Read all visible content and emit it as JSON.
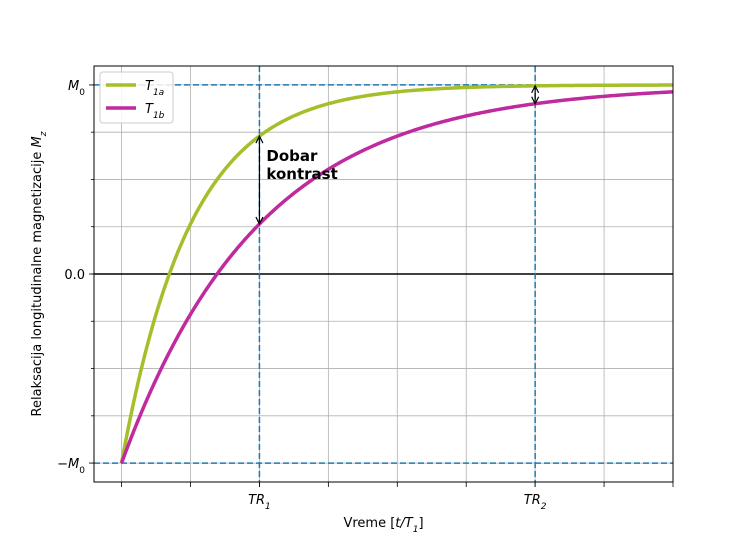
{
  "chart_data": {
    "type": "line",
    "title": "",
    "xlabel": "Vreme [t/T₁]",
    "xlabel_main": "Vreme [",
    "xlabel_var": "t/T",
    "xlabel_sub": "1",
    "xlabel_end": "]",
    "ylabel": "Relaksacija longitudinalne magnetizacije M_z",
    "ylabel_main": "Relaksacija longitudinalne magnetizacije ",
    "ylabel_var": "M",
    "ylabel_sub": "z",
    "xlim": [
      -0.1,
      2.0
    ],
    "ylim": [
      -1.1,
      1.1
    ],
    "grid": true,
    "legend_position": "top-left",
    "x_ticks": [
      {
        "value": 0.5,
        "main": "TR",
        "sub": "1"
      },
      {
        "value": 1.5,
        "main": "TR",
        "sub": "2"
      }
    ],
    "y_ticks": [
      {
        "value": -1,
        "main": "−M",
        "sub": "0"
      },
      {
        "value": 0,
        "main": "0.0",
        "sub": ""
      },
      {
        "value": 1,
        "main": "M",
        "sub": "0"
      }
    ],
    "series": [
      {
        "name": "T1a",
        "legend_main": "T",
        "legend_sub": "1a",
        "color": "#a4bf2a",
        "T1": 0.25,
        "x": [
          0,
          0.1,
          0.2,
          0.3,
          0.4,
          0.5,
          0.6,
          0.7,
          0.8,
          0.9,
          1.0,
          1.2,
          1.4,
          1.6,
          1.8,
          2.0
        ],
        "y": [
          -1,
          -0.341,
          0.101,
          0.398,
          0.596,
          0.729,
          0.819,
          0.878,
          0.918,
          0.945,
          0.963,
          0.984,
          0.993,
          0.997,
          0.999,
          0.999
        ]
      },
      {
        "name": "T1b",
        "legend_main": "T",
        "legend_sub": "1b",
        "color": "#bf2a9e",
        "T1": 0.5,
        "x": [
          0,
          0.1,
          0.2,
          0.3,
          0.4,
          0.5,
          0.6,
          0.7,
          0.8,
          0.9,
          1.0,
          1.2,
          1.4,
          1.6,
          1.8,
          2.0
        ],
        "y": [
          -1,
          -0.637,
          -0.341,
          -0.098,
          0.101,
          0.264,
          0.398,
          0.507,
          0.596,
          0.669,
          0.729,
          0.819,
          0.878,
          0.918,
          0.945,
          0.963
        ]
      }
    ],
    "reference_lines": {
      "horizontal": [
        1,
        -1
      ],
      "vertical": [
        0.5,
        1.5
      ],
      "zero_line": 0
    },
    "annotations": [
      {
        "text_line1": "Dobar",
        "text_line2": "kontrast",
        "x": 0.5
      }
    ]
  }
}
